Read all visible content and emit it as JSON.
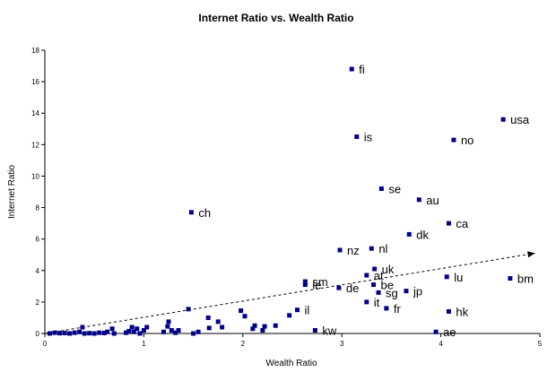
{
  "chart_data": {
    "type": "scatter",
    "title": "Internet Ratio vs. Wealth Ratio",
    "xlabel": "Wealth Ratio",
    "ylabel": "Internet Ratio",
    "xlim": [
      0,
      5
    ],
    "ylim": [
      0,
      18
    ],
    "xticks": [
      "0",
      "1",
      "2",
      "3",
      "4",
      "5"
    ],
    "yticks": [
      "0",
      "2",
      "4",
      "6",
      "8",
      "10",
      "12",
      "14",
      "16",
      "18"
    ],
    "grid": false,
    "legend": "none",
    "marker_color": "#00008b",
    "trend_line": {
      "style": "dashed-arrow",
      "from": [
        0,
        0
      ],
      "to": [
        4.95,
        5.1
      ]
    },
    "points": [
      {
        "x": 3.1,
        "y": 16.8,
        "label": "fi"
      },
      {
        "x": 4.63,
        "y": 13.6,
        "label": "usa"
      },
      {
        "x": 3.15,
        "y": 12.5,
        "label": "is"
      },
      {
        "x": 4.13,
        "y": 12.3,
        "label": "no"
      },
      {
        "x": 3.4,
        "y": 9.2,
        "label": "se"
      },
      {
        "x": 3.78,
        "y": 8.5,
        "label": "au"
      },
      {
        "x": 1.48,
        "y": 7.7,
        "label": "ch"
      },
      {
        "x": 4.08,
        "y": 7.0,
        "label": "ca"
      },
      {
        "x": 3.68,
        "y": 6.3,
        "label": "dk"
      },
      {
        "x": 2.98,
        "y": 5.3,
        "label": "nz"
      },
      {
        "x": 3.3,
        "y": 5.4,
        "label": "nl"
      },
      {
        "x": 3.33,
        "y": 4.1,
        "label": "uk"
      },
      {
        "x": 3.25,
        "y": 3.7,
        "label": "at"
      },
      {
        "x": 4.06,
        "y": 3.6,
        "label": "lu"
      },
      {
        "x": 4.7,
        "y": 3.5,
        "label": "bm"
      },
      {
        "x": 2.63,
        "y": 3.3,
        "label": "sm"
      },
      {
        "x": 2.63,
        "y": 3.1,
        "label": "ie"
      },
      {
        "x": 3.32,
        "y": 3.1,
        "label": "be"
      },
      {
        "x": 2.97,
        "y": 2.9,
        "label": "de"
      },
      {
        "x": 3.37,
        "y": 2.6,
        "label": "sg"
      },
      {
        "x": 3.65,
        "y": 2.7,
        "label": "jp"
      },
      {
        "x": 3.25,
        "y": 2.0,
        "label": "it"
      },
      {
        "x": 3.45,
        "y": 1.6,
        "label": "fr"
      },
      {
        "x": 2.55,
        "y": 1.5,
        "label": "il"
      },
      {
        "x": 4.08,
        "y": 1.4,
        "label": "hk"
      },
      {
        "x": 2.73,
        "y": 0.2,
        "label": "kw"
      },
      {
        "x": 3.95,
        "y": 0.1,
        "label": "ae"
      },
      {
        "x": 0.05,
        "y": 0.0
      },
      {
        "x": 0.1,
        "y": 0.05
      },
      {
        "x": 0.15,
        "y": 0.02
      },
      {
        "x": 0.2,
        "y": 0.03
      },
      {
        "x": 0.25,
        "y": 0.0
      },
      {
        "x": 0.3,
        "y": 0.05
      },
      {
        "x": 0.35,
        "y": 0.1
      },
      {
        "x": 0.38,
        "y": 0.4
      },
      {
        "x": 0.4,
        "y": 0.0
      },
      {
        "x": 0.45,
        "y": 0.02
      },
      {
        "x": 0.5,
        "y": 0.0
      },
      {
        "x": 0.55,
        "y": 0.05
      },
      {
        "x": 0.6,
        "y": 0.03
      },
      {
        "x": 0.63,
        "y": 0.1
      },
      {
        "x": 0.68,
        "y": 0.3
      },
      {
        "x": 0.7,
        "y": 0.0
      },
      {
        "x": 0.82,
        "y": 0.05
      },
      {
        "x": 0.85,
        "y": 0.15
      },
      {
        "x": 0.88,
        "y": 0.4
      },
      {
        "x": 0.9,
        "y": 0.1
      },
      {
        "x": 0.93,
        "y": 0.3
      },
      {
        "x": 0.96,
        "y": 0.0
      },
      {
        "x": 1.0,
        "y": 0.2
      },
      {
        "x": 1.03,
        "y": 0.4
      },
      {
        "x": 1.2,
        "y": 0.1
      },
      {
        "x": 1.24,
        "y": 0.45
      },
      {
        "x": 1.25,
        "y": 0.75
      },
      {
        "x": 1.28,
        "y": 0.2
      },
      {
        "x": 1.32,
        "y": 0.05
      },
      {
        "x": 1.35,
        "y": 0.2
      },
      {
        "x": 1.45,
        "y": 1.55
      },
      {
        "x": 1.5,
        "y": 0.0
      },
      {
        "x": 1.55,
        "y": 0.1
      },
      {
        "x": 1.65,
        "y": 1.0
      },
      {
        "x": 1.66,
        "y": 0.35
      },
      {
        "x": 1.75,
        "y": 0.75
      },
      {
        "x": 1.79,
        "y": 0.4
      },
      {
        "x": 1.98,
        "y": 1.45
      },
      {
        "x": 2.02,
        "y": 1.1
      },
      {
        "x": 2.1,
        "y": 0.3
      },
      {
        "x": 2.12,
        "y": 0.5
      },
      {
        "x": 2.2,
        "y": 0.2
      },
      {
        "x": 2.22,
        "y": 0.45
      },
      {
        "x": 2.33,
        "y": 0.5
      },
      {
        "x": 2.47,
        "y": 1.15
      }
    ]
  }
}
